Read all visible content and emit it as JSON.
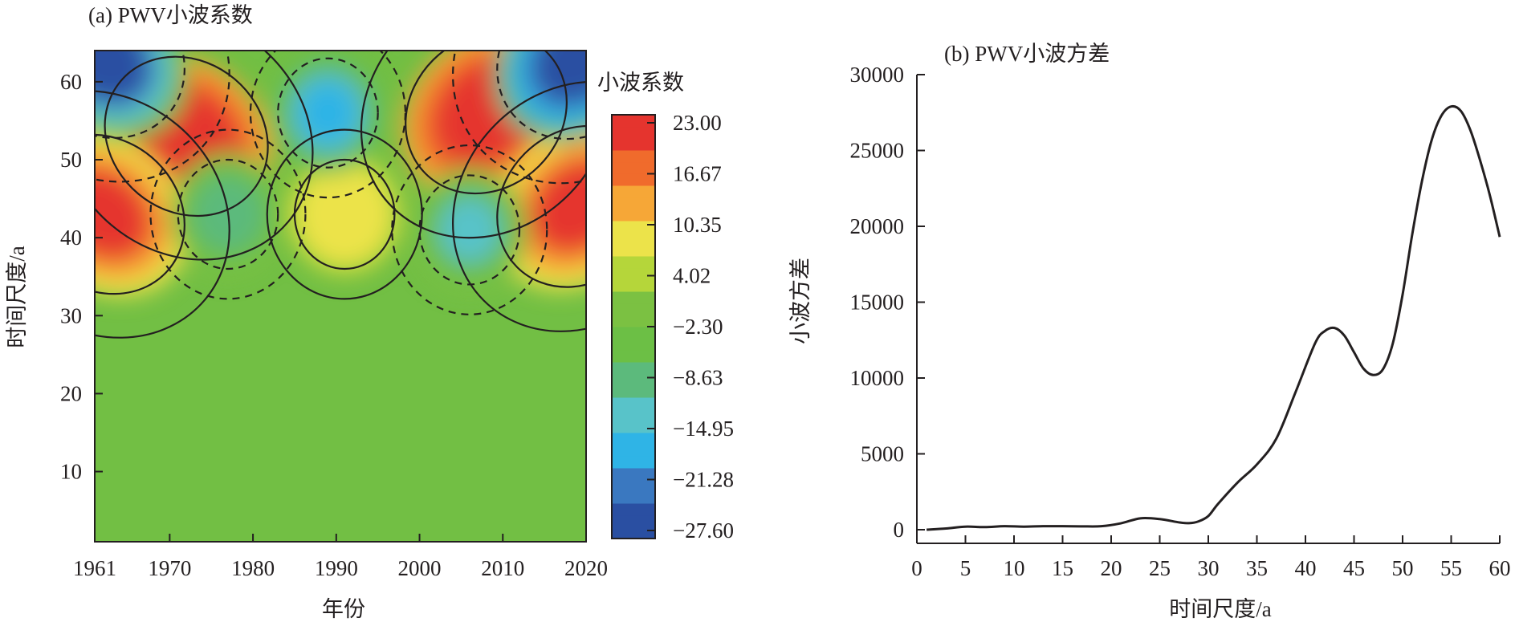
{
  "chart_data": [
    {
      "type": "heatmap",
      "title": "(a) PWV小波系数",
      "xlabel": "年份",
      "ylabel": "时间尺度/a",
      "xlim": [
        1961,
        2020
      ],
      "ylim": [
        1,
        64
      ],
      "x_ticks": [
        1961,
        1970,
        1980,
        1990,
        2000,
        2010,
        2020
      ],
      "y_ticks": [
        10,
        20,
        30,
        40,
        50,
        60
      ],
      "colorbar": {
        "label": "小波系数",
        "ticks": [
          "23.00",
          "16.67",
          "10.35",
          "4.02",
          "−2.30",
          "−8.63",
          "−14.95",
          "−21.28",
          "−27.60"
        ],
        "range": [
          -27.6,
          23.0
        ],
        "colors": [
          "#2a4fa2",
          "#3a78c0",
          "#2fb4e6",
          "#58c3c9",
          "#5cba7c",
          "#6cbf45",
          "#7bc142",
          "#b5d63a",
          "#ece34a",
          "#f6a737",
          "#f06b2c",
          "#e5342e"
        ]
      },
      "features": [
        {
          "type": "positive-core",
          "center": [
            1972,
            53
          ],
          "peak": 23.0
        },
        {
          "type": "positive-core",
          "center": [
            2008,
            56
          ],
          "peak": 23.0
        },
        {
          "type": "positive-core",
          "center": [
            2019,
            44
          ],
          "peak": 20.0
        },
        {
          "type": "positive-core",
          "center": [
            1962,
            43
          ],
          "peak": 20.0
        },
        {
          "type": "positive-local",
          "center": [
            1991,
            43
          ],
          "peak": 10.0
        },
        {
          "type": "negative-core",
          "center": [
            1989,
            56
          ],
          "peak": -15.0
        },
        {
          "type": "negative-core",
          "center": [
            1977,
            43
          ],
          "peak": -10.0
        },
        {
          "type": "negative-core",
          "center": [
            2006,
            41
          ],
          "peak": -11.0
        },
        {
          "type": "negative-core",
          "center": [
            1962,
            63
          ],
          "peak": -25.0
        },
        {
          "type": "negative-core",
          "center": [
            2019,
            63
          ],
          "peak": -27.6
        }
      ]
    },
    {
      "type": "line",
      "title": "(b) PWV小波方差",
      "xlabel": "时间尺度/a",
      "ylabel": "小波方差",
      "xlim": [
        0,
        60
      ],
      "ylim": [
        0,
        30000
      ],
      "x_ticks": [
        0,
        5,
        10,
        15,
        20,
        25,
        30,
        35,
        40,
        45,
        50,
        55,
        60
      ],
      "y_ticks": [
        0,
        5000,
        10000,
        15000,
        20000,
        25000,
        30000
      ],
      "series": [
        {
          "name": "小波方差",
          "x": [
            1,
            3,
            5,
            7,
            9,
            11,
            13,
            15,
            17,
            19,
            21,
            23,
            25,
            27,
            28,
            29,
            30,
            31,
            33,
            35,
            37,
            39,
            41,
            42,
            43,
            44,
            45,
            46,
            47,
            48,
            49,
            50,
            51,
            52,
            53,
            54,
            55,
            56,
            57,
            58,
            59,
            60
          ],
          "y": [
            0,
            80,
            200,
            170,
            230,
            200,
            230,
            230,
            220,
            230,
            420,
            750,
            700,
            480,
            430,
            550,
            900,
            1700,
            3100,
            4300,
            6000,
            9100,
            12300,
            13100,
            13300,
            12800,
            11700,
            10600,
            10200,
            10600,
            12300,
            15500,
            19500,
            23000,
            25700,
            27300,
            27900,
            27600,
            26300,
            24300,
            22000,
            19300
          ]
        }
      ]
    }
  ]
}
